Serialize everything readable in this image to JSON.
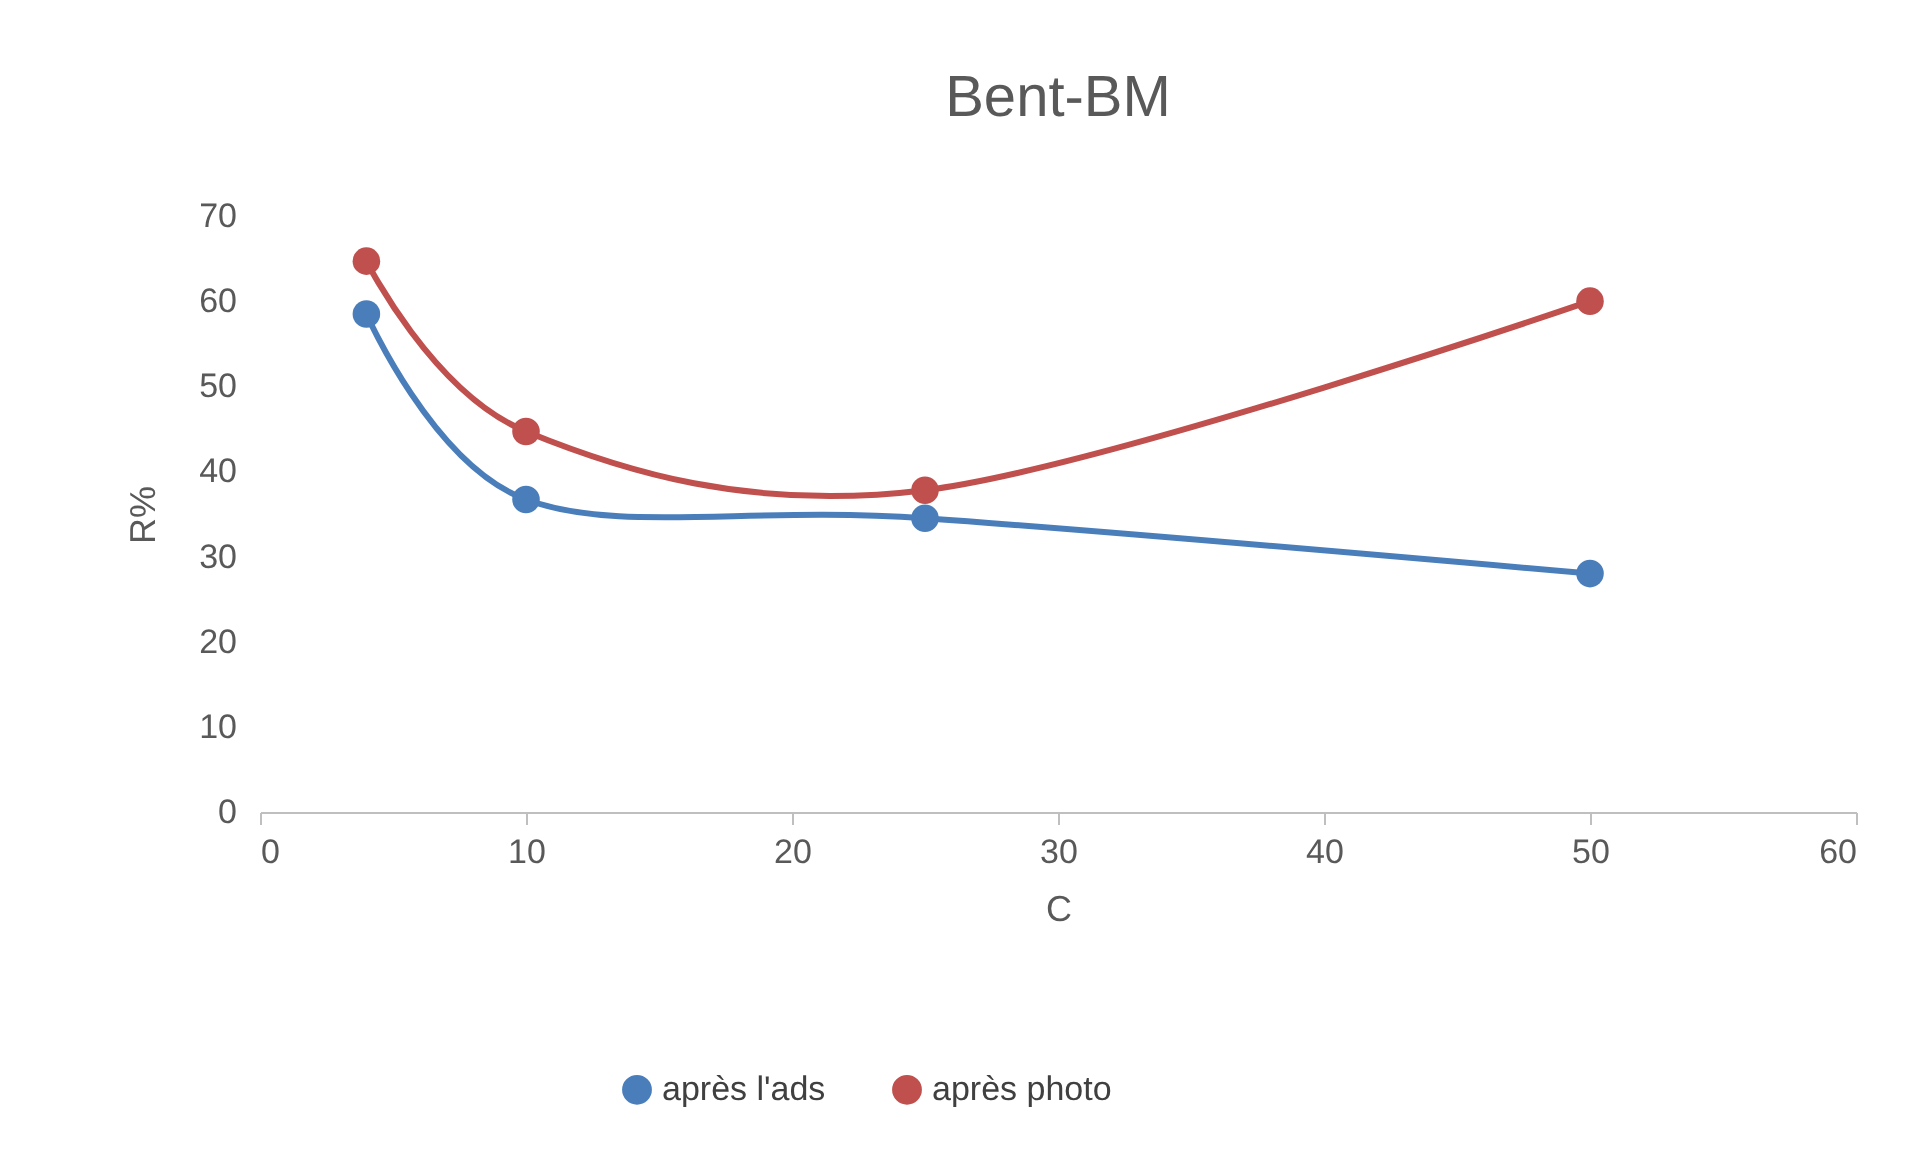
{
  "chart_data": {
    "type": "line",
    "title": "Bent-BM",
    "xlabel": "C",
    "ylabel": "R%",
    "x": [
      4,
      10,
      25,
      50
    ],
    "series": [
      {
        "name": "après l'ads",
        "color": "#4a7ebb",
        "values": [
          58.5,
          36.7,
          34.5,
          28
        ]
      },
      {
        "name": "après photo",
        "color": "#c0504d",
        "values": [
          64.7,
          44.7,
          37.8,
          60
        ]
      }
    ],
    "xlim": [
      0,
      60
    ],
    "xticks": [
      0,
      10,
      20,
      30,
      40,
      50,
      60
    ],
    "ylim": [
      0,
      70
    ],
    "yticks": [
      0,
      10,
      20,
      30,
      40,
      50,
      60,
      70
    ],
    "grid": false,
    "legend": "bottom",
    "marker": "circle",
    "line_style": "solid"
  }
}
